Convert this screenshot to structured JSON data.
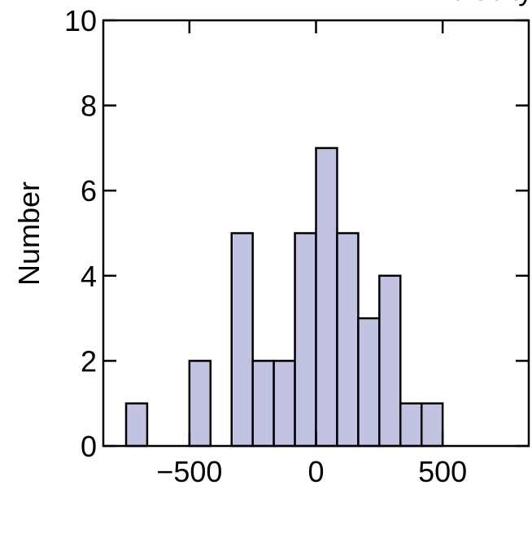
{
  "chart_data": {
    "type": "histogram",
    "x_label": "Δ Velocity [km/s]",
    "y_label": "Number",
    "bins": [
      -750,
      -666.7,
      -583.3,
      -500,
      -416.7,
      -333.3,
      -250,
      -166.7,
      -83.3,
      0,
      83.3,
      166.7,
      250,
      333.3,
      416.7,
      500
    ],
    "counts": [
      1,
      0,
      0,
      2,
      0,
      5,
      2,
      2,
      5,
      7,
      5,
      3,
      4,
      1,
      1
    ],
    "color": "#c1c3e1",
    "edgecolor": "#000000",
    "xlim": [
      -840,
      840
    ],
    "xticks": [
      {
        "value": -500,
        "label": "−500"
      },
      0,
      500
    ],
    "ylim": [
      0,
      10
    ],
    "yticks": [
      0,
      2,
      4,
      6,
      8,
      10
    ]
  }
}
